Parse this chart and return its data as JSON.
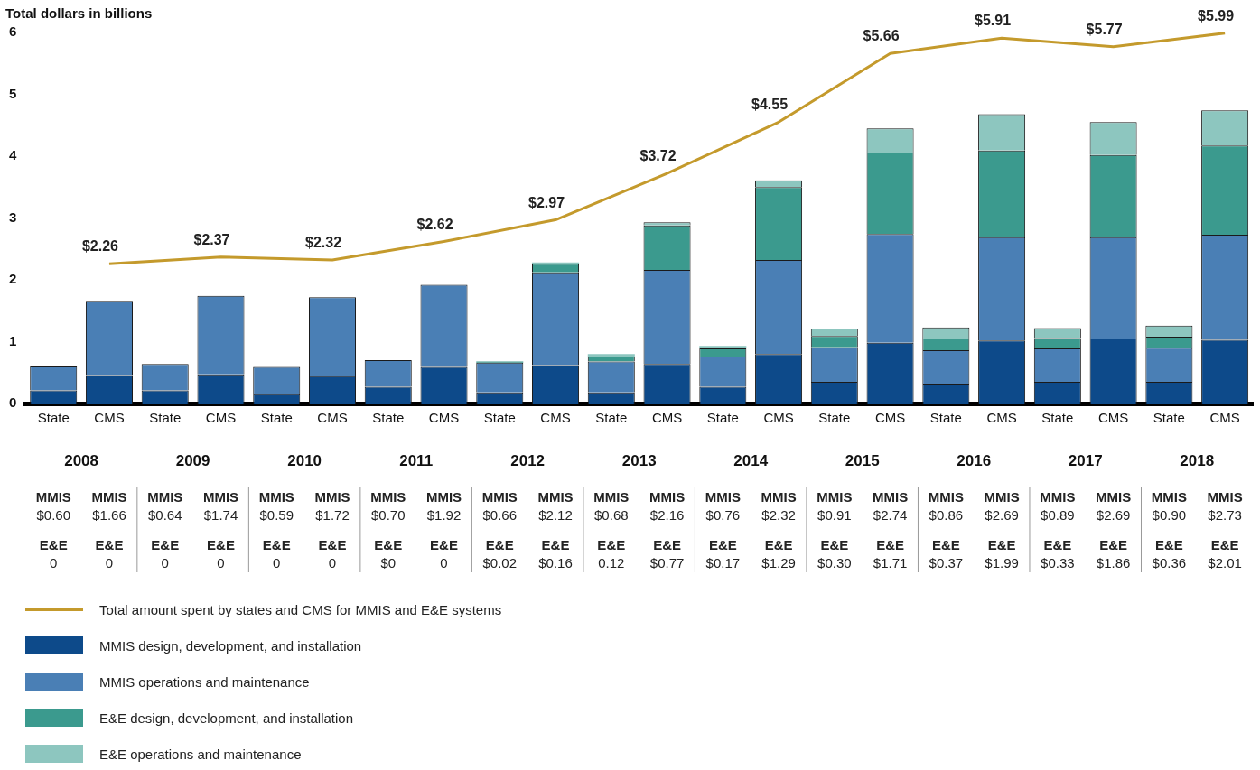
{
  "chart_data": {
    "type": "bar",
    "stacked": true,
    "ylabel": "Total dollars in billions",
    "categories": [
      "State",
      "CMS",
      "State",
      "CMS",
      "State",
      "CMS",
      "State",
      "CMS",
      "State",
      "CMS",
      "State",
      "CMS",
      "State",
      "CMS",
      "State",
      "CMS",
      "State",
      "CMS",
      "State",
      "CMS",
      "State",
      "CMS"
    ],
    "ylim": [
      0,
      6
    ],
    "yticks": [
      0,
      1,
      2,
      3,
      4,
      5,
      6
    ],
    "grid": false,
    "legend": "bottom",
    "marker": "none",
    "series": [
      {
        "name": "Total amount spent by states and CMS for MMIS and E&E systems",
        "type": "line",
        "color": "#c49a2c",
        "values": [
          null,
          2.26,
          null,
          2.37,
          null,
          2.32,
          null,
          2.62,
          null,
          2.97,
          null,
          3.72,
          null,
          4.55,
          null,
          5.66,
          null,
          5.91,
          null,
          5.77,
          null,
          5.99
        ],
        "value_labels": [
          null,
          "$2.26",
          null,
          "$2.37",
          null,
          "$2.32",
          null,
          "$2.62",
          null,
          "$2.97",
          null,
          "$3.72",
          null,
          "$4.55",
          null,
          "$5.66",
          null,
          "$5.91",
          null,
          "$5.77",
          null,
          "$5.99"
        ]
      },
      {
        "name": "MMIS design, development, and installation",
        "color": "#0d4a8a",
        "values": [
          0.21,
          0.46,
          0.21,
          0.47,
          0.15,
          0.44,
          0.27,
          0.59,
          0.18,
          0.62,
          0.18,
          0.64,
          0.27,
          0.8,
          0.35,
          0.98,
          0.32,
          1.02,
          0.35,
          1.05,
          0.35,
          1.03
        ]
      },
      {
        "name": "MMIS operations and maintenance",
        "color": "#4a7fb5",
        "values": [
          0.39,
          1.2,
          0.43,
          1.27,
          0.44,
          1.28,
          0.43,
          1.33,
          0.48,
          1.5,
          0.5,
          1.52,
          0.49,
          1.52,
          0.56,
          1.76,
          0.54,
          1.67,
          0.54,
          1.64,
          0.55,
          1.7
        ]
      },
      {
        "name": "E&E design, development, and installation",
        "color": "#3b9a8e",
        "values": [
          0,
          0,
          0,
          0,
          0,
          0,
          0,
          0,
          0.02,
          0.14,
          0.08,
          0.72,
          0.13,
          1.18,
          0.18,
          1.32,
          0.19,
          1.4,
          0.17,
          1.33,
          0.18,
          1.44
        ]
      },
      {
        "name": "E&E operations and maintenance",
        "color": "#8dc6bf",
        "values": [
          0,
          0,
          0,
          0,
          0,
          0,
          0,
          0,
          0,
          0.02,
          0.04,
          0.05,
          0.04,
          0.11,
          0.12,
          0.39,
          0.18,
          0.59,
          0.16,
          0.53,
          0.18,
          0.57
        ]
      }
    ],
    "annotations": [
      "2008",
      "2009",
      "2010",
      "2011",
      "2012",
      "2013",
      "2014",
      "2015",
      "2016",
      "2017",
      "2018",
      "MMIS",
      "E&E",
      "$0.60",
      "$1.66",
      "$0.64",
      "$1.74",
      "$0.59",
      "$1.72",
      "$0.70",
      "$1.92",
      "$0.66",
      "$2.12",
      "$0.68",
      "$2.16",
      "$0.76",
      "$2.32",
      "$0.91",
      "$2.74",
      "$0.86",
      "$2.69",
      "$0.89",
      "$2.69",
      "$0.90",
      "$2.73",
      "0",
      "0",
      "0",
      "0",
      "0",
      "0",
      "$0",
      "0",
      "$0.02",
      "$0.16",
      "0.12",
      "$0.77",
      "$0.17",
      "$1.29",
      "$0.30",
      "$1.71",
      "$0.37",
      "$1.99",
      "$0.33",
      "$1.86",
      "$0.36",
      "$2.01"
    ]
  }
}
